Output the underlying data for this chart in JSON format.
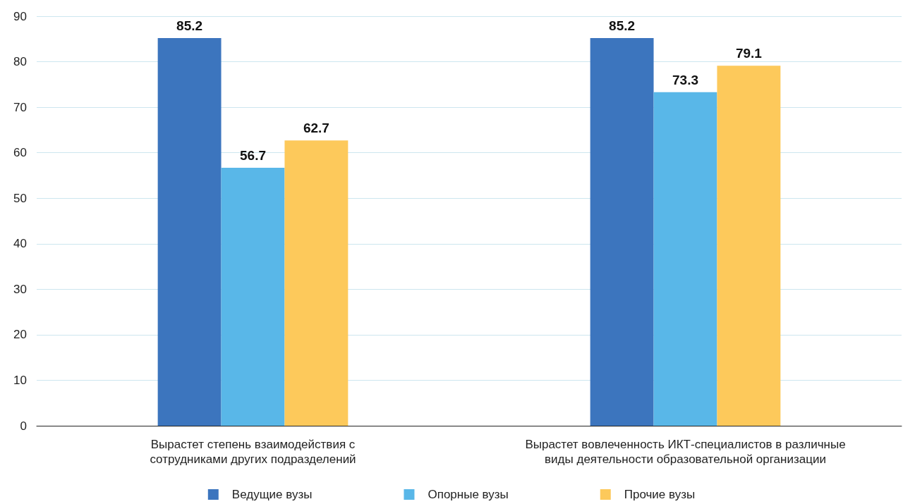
{
  "chart_data": {
    "type": "bar",
    "categories": [
      "Вырастет степень взаимодействия с сотрудниками других подразделений",
      "Вырастет вовлеченность ИКТ-специалистов в различные виды деятельности образовательной организации"
    ],
    "series": [
      {
        "name": "Ведущие вузы",
        "color": "#3c75be",
        "values": [
          85.2,
          85.2
        ]
      },
      {
        "name": "Опорные вузы",
        "color": "#59b7e8",
        "values": [
          56.7,
          73.3
        ]
      },
      {
        "name": "Прочие вузы",
        "color": "#fdc95b",
        "values": [
          62.7,
          79.1
        ]
      }
    ],
    "ylim": [
      0,
      90
    ],
    "yticks": [
      0,
      10,
      20,
      30,
      40,
      50,
      60,
      70,
      80,
      90
    ],
    "grid": "y",
    "legend": "bottom",
    "data_labels": true
  }
}
